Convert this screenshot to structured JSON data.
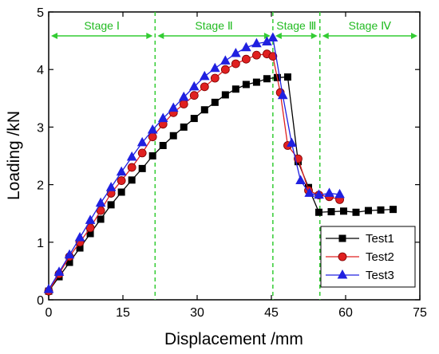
{
  "chart_data": {
    "type": "line",
    "xlabel": "Displacement /mm",
    "ylabel": "Loading /kN",
    "xlim": [
      0,
      75
    ],
    "ylim": [
      0,
      5
    ],
    "xticks": [
      0,
      15,
      30,
      45,
      60,
      75
    ],
    "yticks": [
      0,
      1,
      2,
      3,
      4,
      5
    ],
    "legend_position": "lower-right",
    "stage_boundaries": [
      0,
      21.5,
      45.3,
      54.8,
      75
    ],
    "stages": [
      {
        "label": "Stage Ⅰ",
        "from": 0,
        "to": 21.5
      },
      {
        "label": "Stage Ⅱ",
        "from": 21.5,
        "to": 45.3
      },
      {
        "label": "Stage Ⅲ",
        "from": 45.3,
        "to": 54.8
      },
      {
        "label": "Stage Ⅳ",
        "from": 54.8,
        "to": 75
      }
    ],
    "series": [
      {
        "name": "Test1",
        "color": "#000000",
        "marker": "square",
        "x": [
          0,
          2.1,
          4.2,
          6.3,
          8.4,
          10.5,
          12.6,
          14.7,
          16.8,
          18.9,
          21.0,
          23.1,
          25.2,
          27.3,
          29.4,
          31.5,
          33.6,
          35.7,
          37.8,
          39.9,
          42.0,
          44.1,
          46.2,
          48.3,
          50.4,
          52.5,
          54.6,
          57.1,
          59.6,
          62.1,
          64.6,
          67.1,
          69.6
        ],
        "y": [
          0.15,
          0.4,
          0.65,
          0.9,
          1.15,
          1.4,
          1.65,
          1.87,
          2.08,
          2.28,
          2.5,
          2.68,
          2.85,
          3.0,
          3.15,
          3.3,
          3.43,
          3.56,
          3.66,
          3.74,
          3.78,
          3.84,
          3.86,
          3.87,
          2.4,
          1.95,
          1.52,
          1.53,
          1.54,
          1.52,
          1.55,
          1.56,
          1.57
        ]
      },
      {
        "name": "Test2",
        "color": "#e02020",
        "marker": "circle",
        "x": [
          0,
          2.1,
          4.2,
          6.3,
          8.4,
          10.5,
          12.6,
          14.7,
          16.8,
          18.9,
          21.0,
          23.1,
          25.2,
          27.3,
          29.4,
          31.5,
          33.6,
          35.7,
          37.8,
          39.9,
          42.0,
          44.1,
          45.3,
          46.8,
          48.3,
          50.4,
          52.5,
          54.6,
          56.7,
          58.8
        ],
        "y": [
          0.15,
          0.45,
          0.75,
          1.0,
          1.25,
          1.55,
          1.85,
          2.07,
          2.3,
          2.55,
          2.83,
          3.05,
          3.25,
          3.4,
          3.55,
          3.7,
          3.85,
          4.0,
          4.1,
          4.18,
          4.25,
          4.27,
          4.23,
          3.6,
          2.68,
          2.45,
          1.9,
          1.82,
          1.79,
          1.74
        ]
      },
      {
        "name": "Test3",
        "color": "#2020e0",
        "marker": "triangle",
        "x": [
          0,
          2.1,
          4.2,
          6.3,
          8.4,
          10.5,
          12.6,
          14.7,
          16.8,
          18.9,
          21.0,
          23.1,
          25.2,
          27.3,
          29.4,
          31.5,
          33.6,
          35.7,
          37.8,
          39.9,
          42.0,
          44.1,
          45.3,
          47.3,
          49.1,
          50.9,
          52.7,
          54.6,
          56.7,
          58.8
        ],
        "y": [
          0.18,
          0.48,
          0.78,
          1.08,
          1.38,
          1.68,
          1.95,
          2.22,
          2.48,
          2.73,
          2.95,
          3.15,
          3.33,
          3.52,
          3.7,
          3.88,
          4.02,
          4.15,
          4.28,
          4.38,
          4.45,
          4.48,
          4.55,
          3.55,
          2.72,
          2.07,
          1.85,
          1.82,
          1.85,
          1.83
        ]
      }
    ]
  }
}
